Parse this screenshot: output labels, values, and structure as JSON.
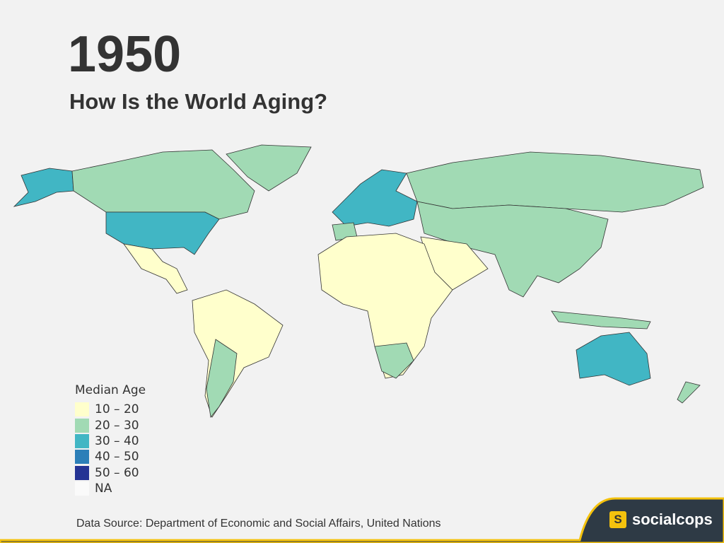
{
  "header": {
    "year": "1950",
    "title": "How Is the World Aging?"
  },
  "legend": {
    "title": "Median Age",
    "items": [
      {
        "label": "10 – 20",
        "color": "#ffffcc"
      },
      {
        "label": "20 – 30",
        "color": "#a1dab4"
      },
      {
        "label": "30 – 40",
        "color": "#41b6c4"
      },
      {
        "label": "40 – 50",
        "color": "#2c7fb8"
      },
      {
        "label": "50 – 60",
        "color": "#253494"
      },
      {
        "label": "NA",
        "color": "#fafafa"
      }
    ]
  },
  "footer": {
    "source": "Data Source: Department of Economic and Social Affairs, United Nations",
    "logo": "S",
    "brand": "socialcops"
  }
}
